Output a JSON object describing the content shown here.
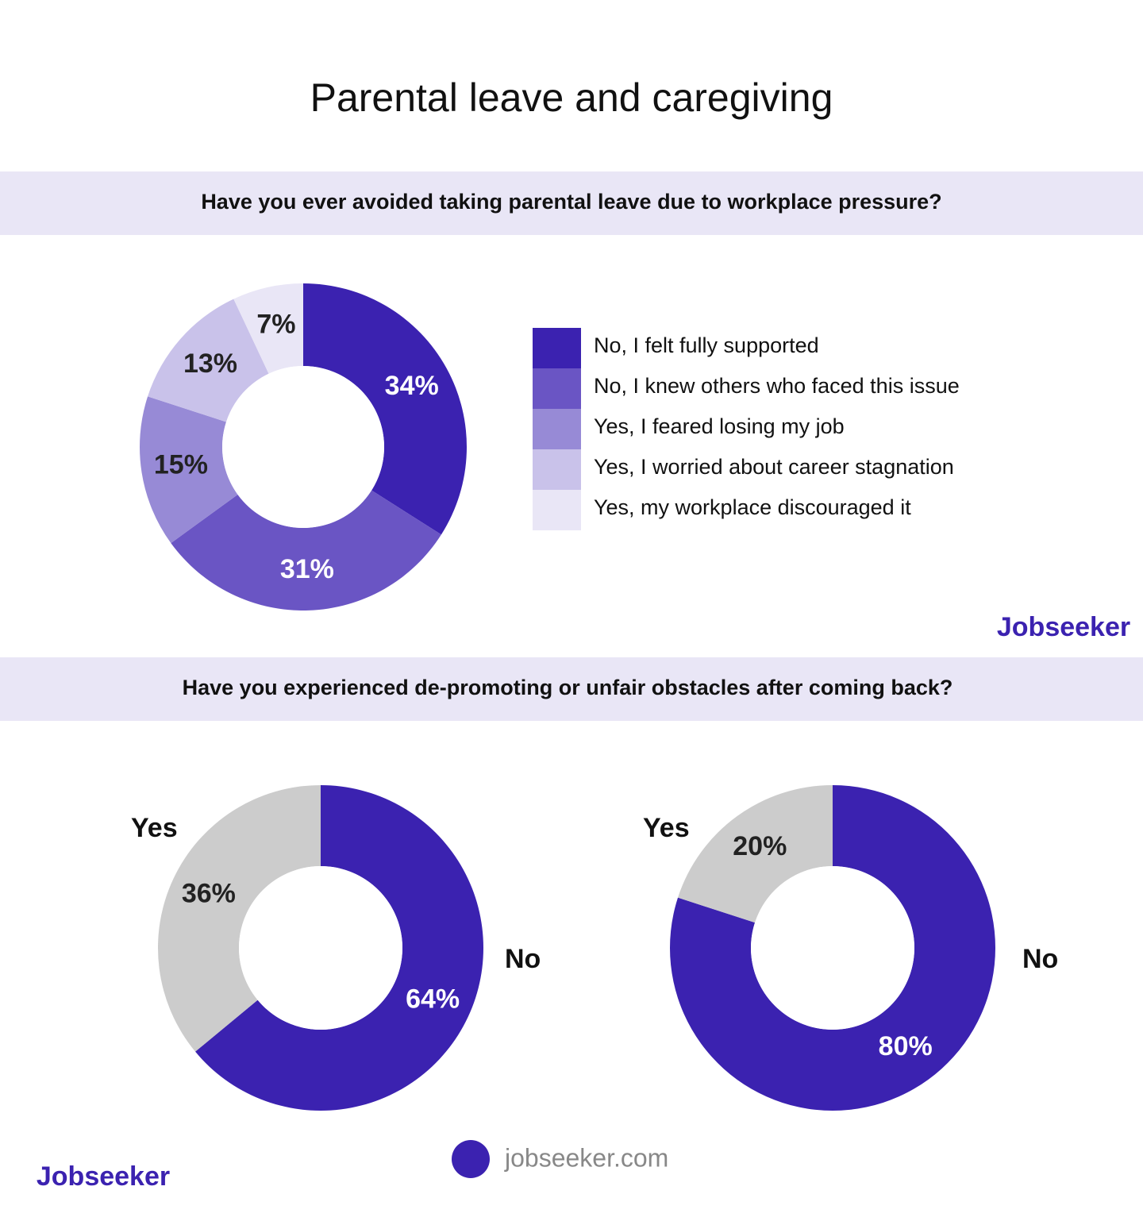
{
  "title": "Parental leave and caregiving",
  "questions": [
    "Have you ever avoided taking parental leave due to workplace pressure?",
    "Have you experienced de-promoting or unfair obstacles after coming back?"
  ],
  "brand": "Jobseeker",
  "website": "jobseeker.com",
  "chart_data": [
    {
      "type": "donut",
      "categories": [
        "No, I felt fully supported",
        "No, I knew others who faced this issue",
        "Yes, I feared losing my job",
        "Yes, I worried about career stagnation",
        "Yes, my workplace discouraged it"
      ],
      "values": [
        34,
        31,
        15,
        13,
        7
      ],
      "value_labels": [
        "34%",
        "31%",
        "15%",
        "13%",
        "7%"
      ],
      "colors": [
        "#3b22b0",
        "#6a55c4",
        "#978ad6",
        "#c9c2ea",
        "#e9e6f6"
      ],
      "legend": true
    },
    {
      "type": "donut",
      "categories": [
        "No",
        "Yes"
      ],
      "values": [
        64,
        36
      ],
      "value_labels": [
        "64%",
        "36%"
      ],
      "colors": [
        "#3b22b0",
        "#cccccc"
      ],
      "legend": false
    },
    {
      "type": "donut",
      "categories": [
        "No",
        "Yes"
      ],
      "values": [
        80,
        20
      ],
      "value_labels": [
        "80%",
        "20%"
      ],
      "colors": [
        "#3b22b0",
        "#cccccc"
      ],
      "legend": false
    }
  ]
}
